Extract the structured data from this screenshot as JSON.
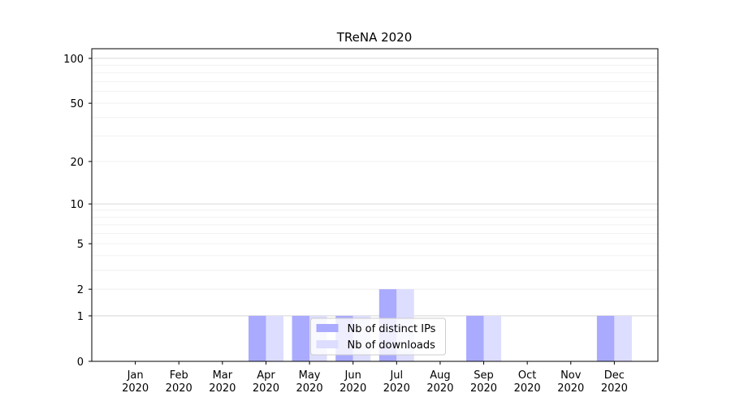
{
  "chart_data": {
    "type": "bar",
    "title": "TReNA 2020",
    "categories": [
      "Jan\n2020",
      "Feb\n2020",
      "Mar\n2020",
      "Apr\n2020",
      "May\n2020",
      "Jun\n2020",
      "Jul\n2020",
      "Aug\n2020",
      "Sep\n2020",
      "Oct\n2020",
      "Nov\n2020",
      "Dec\n2020"
    ],
    "series": [
      {
        "name": "Nb of distinct IPs",
        "color": "#aaaaff",
        "values": [
          0,
          0,
          0,
          1,
          1,
          1,
          2,
          0,
          1,
          0,
          0,
          1
        ]
      },
      {
        "name": "Nb of downloads",
        "color": "#ddddff",
        "values": [
          0,
          0,
          0,
          1,
          1,
          1,
          2,
          0,
          1,
          0,
          0,
          1
        ]
      }
    ],
    "yscale": "log1p",
    "ylim": [
      0,
      116
    ],
    "yticks": [
      0,
      1,
      2,
      5,
      10,
      20,
      50,
      100
    ],
    "yminorticks": [
      3,
      4,
      6,
      7,
      8,
      9,
      30,
      40,
      60,
      70,
      80,
      90
    ],
    "grid": true,
    "legend": "lower center"
  }
}
